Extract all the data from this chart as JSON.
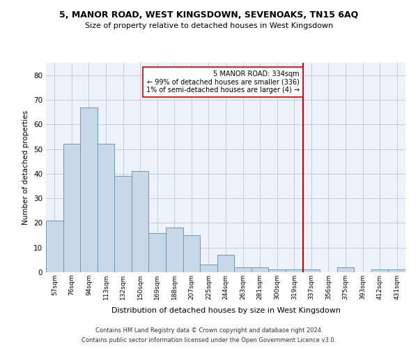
{
  "title": "5, MANOR ROAD, WEST KINGSDOWN, SEVENOAKS, TN15 6AQ",
  "subtitle": "Size of property relative to detached houses in West Kingsdown",
  "xlabel": "Distribution of detached houses by size in West Kingsdown",
  "ylabel": "Number of detached properties",
  "categories": [
    "57sqm",
    "76sqm",
    "94sqm",
    "113sqm",
    "132sqm",
    "150sqm",
    "169sqm",
    "188sqm",
    "207sqm",
    "225sqm",
    "244sqm",
    "263sqm",
    "281sqm",
    "300sqm",
    "319sqm",
    "337sqm",
    "356sqm",
    "375sqm",
    "393sqm",
    "412sqm",
    "431sqm"
  ],
  "values": [
    21,
    52,
    67,
    52,
    39,
    41,
    16,
    18,
    15,
    3,
    7,
    2,
    2,
    1,
    1,
    1,
    0,
    2,
    0,
    1,
    1
  ],
  "bar_color": "#c8d8e8",
  "bar_edge_color": "#6a9ab8",
  "grid_color": "#b8c8d8",
  "background_color": "#eef2fa",
  "vline_x": 14.5,
  "vline_color": "#cc0000",
  "annotation_text": "5 MANOR ROAD: 334sqm\n← 99% of detached houses are smaller (336)\n1% of semi-detached houses are larger (4) →",
  "annotation_box_color": "#ffffff",
  "annotation_box_edge": "#cc0000",
  "ylim": [
    0,
    85
  ],
  "yticks": [
    0,
    10,
    20,
    30,
    40,
    50,
    60,
    70,
    80
  ],
  "footer_line1": "Contains HM Land Registry data © Crown copyright and database right 2024.",
  "footer_line2": "Contains public sector information licensed under the Open Government Licence v3.0."
}
